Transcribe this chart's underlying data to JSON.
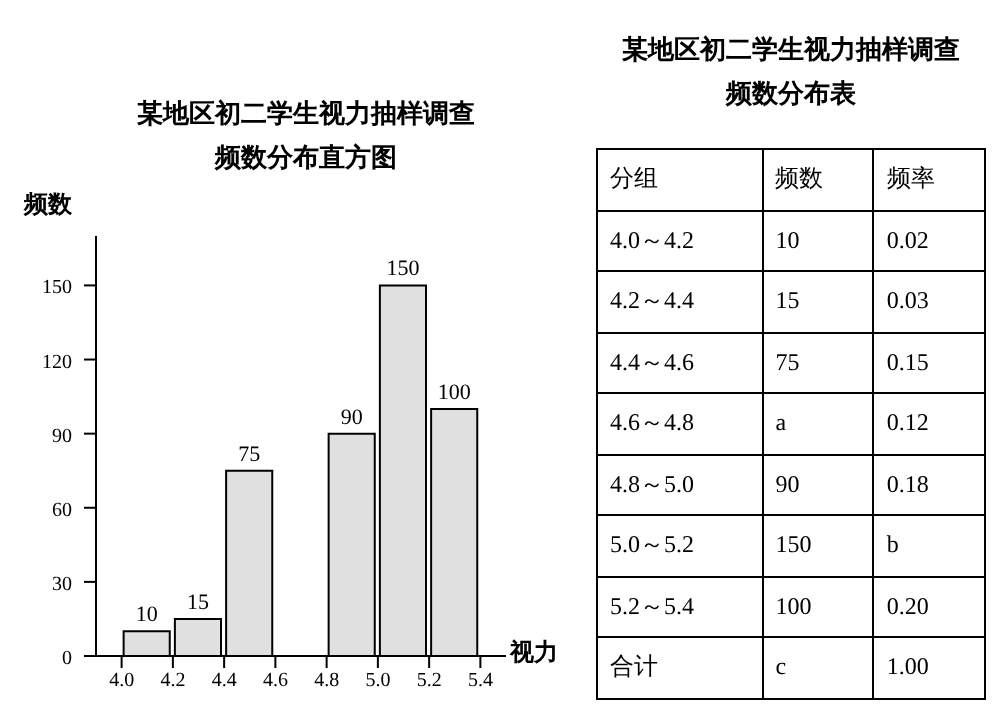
{
  "chart_data": [
    {
      "type": "histogram",
      "title": "某地区初二学生视力抽样调查",
      "subtitle": "频数分布直方图",
      "xlabel": "视力",
      "ylabel": "频数",
      "bins": [
        4.0,
        4.2,
        4.4,
        4.6,
        4.8,
        5.0,
        5.2,
        5.4
      ],
      "values": [
        10,
        15,
        75,
        null,
        90,
        150,
        100
      ],
      "color": "#e0e0e0",
      "xlim": [
        3.9,
        5.5
      ],
      "xticks": [
        {
          "value": 4.0,
          "label": "4.0"
        },
        {
          "value": 4.2,
          "label": "4.2"
        },
        {
          "value": 4.4,
          "label": "4.4"
        },
        {
          "value": 4.6,
          "label": "4.6"
        },
        {
          "value": 4.8,
          "label": "4.8"
        },
        {
          "value": 5.0,
          "label": "5.0"
        },
        {
          "value": 5.2,
          "label": "5.2"
        },
        {
          "value": 5.4,
          "label": "5.4"
        }
      ],
      "ylim": [
        0,
        170
      ],
      "yticks": [
        0,
        30,
        60,
        90,
        120,
        150
      ],
      "grid": false,
      "data_labels": true
    },
    {
      "type": "other",
      "title": "某地区初二学生视力抽样调查",
      "subtitle": "频数分布表",
      "annotations": [
        "分组",
        "频数",
        "频率",
        "4.0～4.2",
        "10",
        "0.02",
        "4.2～4.4",
        "15",
        "0.03",
        "4.4～4.6",
        "75",
        "0.15",
        "4.6～4.8",
        "a",
        "0.12",
        "4.8～5.0",
        "90",
        "0.18",
        "5.0～5.2",
        "150",
        "b",
        "5.2～5.4",
        "100",
        "0.20",
        "合计",
        "c",
        "1.00"
      ]
    }
  ]
}
